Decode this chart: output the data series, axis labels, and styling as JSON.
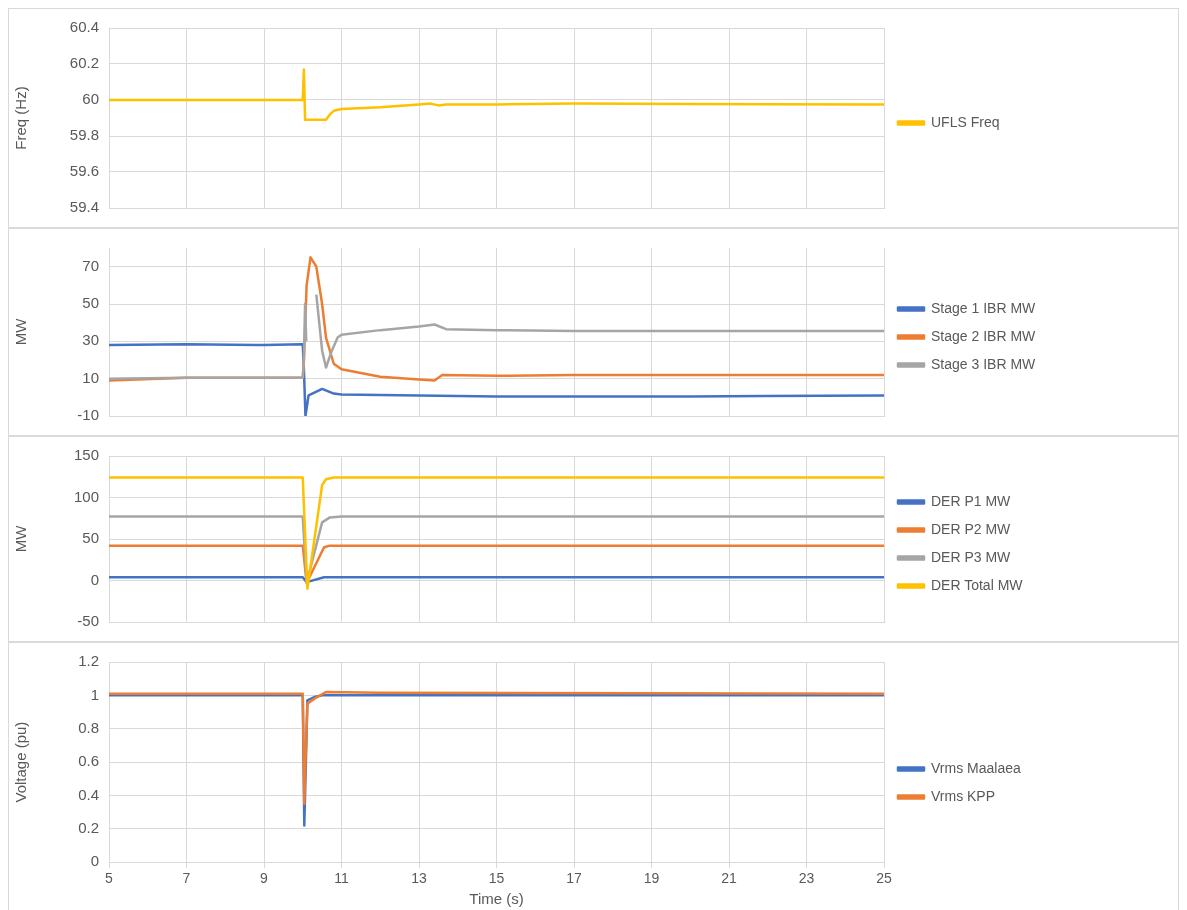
{
  "chart_data": [
    {
      "type": "line",
      "ylabel": "Freq (Hz)",
      "xlim": [
        5,
        25
      ],
      "xticks": [
        5,
        7,
        9,
        11,
        13,
        15,
        17,
        19,
        21,
        23,
        25
      ],
      "ylim": [
        59.4,
        60.4
      ],
      "yticks": [
        59.4,
        59.6,
        59.8,
        60,
        60.2,
        60.4
      ],
      "grid": true,
      "legend": "right",
      "tick_labels": "y",
      "series": [
        {
          "name": "UFLS Freq",
          "color": "#ffc000",
          "x": [
            5,
            10,
            10.03,
            10.06,
            10.6,
            10.7,
            10.8,
            11,
            12,
            13,
            13.3,
            13.5,
            13.7,
            15,
            17,
            20,
            25
          ],
          "values": [
            60,
            60,
            60.17,
            59.89,
            59.89,
            59.92,
            59.94,
            59.95,
            59.96,
            59.975,
            59.98,
            59.97,
            59.975,
            59.975,
            59.98,
            59.978,
            59.975
          ]
        }
      ]
    },
    {
      "type": "line",
      "ylabel": "MW",
      "xlim": [
        5,
        25
      ],
      "xticks": [
        5,
        7,
        9,
        11,
        13,
        15,
        17,
        19,
        21,
        23,
        25
      ],
      "ylim": [
        -10,
        80
      ],
      "yticks": [
        -10,
        10,
        30,
        50,
        70
      ],
      "grid": true,
      "legend": "right",
      "tick_labels": "y",
      "series": [
        {
          "name": "Stage 1 IBR MW",
          "color": "#4472c4",
          "x": [
            5,
            7,
            9,
            10,
            10.03,
            10.07,
            10.15,
            10.3,
            10.5,
            10.8,
            11,
            13,
            15,
            20,
            25
          ],
          "values": [
            28,
            28.5,
            28,
            28.5,
            15,
            -10,
            1,
            2.5,
            4.5,
            2,
            1.5,
            1,
            0.5,
            0.5,
            1
          ]
        },
        {
          "name": "Stage 2 IBR MW",
          "color": "#ed7d31",
          "x": [
            5,
            7,
            10,
            10.03,
            10.1,
            10.2,
            10.35,
            10.5,
            10.6,
            10.8,
            11,
            12,
            13,
            13.4,
            13.6,
            15,
            17,
            20,
            25
          ],
          "values": [
            9,
            10.5,
            10.5,
            20,
            60,
            75,
            70,
            50,
            32,
            18,
            15,
            11,
            9.5,
            9,
            12,
            11.5,
            12,
            12,
            12
          ]
        },
        {
          "name": "Stage 3 IBR MW",
          "color": "#a5a5a5",
          "x": [
            5,
            7,
            10,
            10.03,
            10.06,
            10.09,
            10.12,
            10.2,
            10.35,
            10.5,
            10.6,
            10.75,
            10.9,
            11,
            12,
            13,
            13.4,
            13.7,
            15,
            17,
            20,
            25
          ],
          "values": [
            10,
            10.5,
            10.5,
            20,
            50,
            30,
            null,
            null,
            55,
            25,
            16,
            25,
            32,
            33.5,
            36,
            38,
            39,
            36.5,
            36,
            35.5,
            35.5,
            35.5
          ]
        }
      ]
    },
    {
      "type": "line",
      "ylabel": "MW",
      "xlim": [
        5,
        25
      ],
      "xticks": [
        5,
        7,
        9,
        11,
        13,
        15,
        17,
        19,
        21,
        23,
        25
      ],
      "ylim": [
        -50,
        150
      ],
      "yticks": [
        -50,
        0,
        50,
        100,
        150
      ],
      "grid": true,
      "legend": "right",
      "tick_labels": "y",
      "series": [
        {
          "name": "DER P1 MW",
          "color": "#4472c4",
          "x": [
            5,
            10,
            10.1,
            10.55,
            25
          ],
          "values": [
            4,
            4,
            -2,
            4,
            4
          ]
        },
        {
          "name": "DER P2 MW",
          "color": "#ed7d31",
          "x": [
            5,
            10,
            10.1,
            10.55,
            10.7,
            25
          ],
          "values": [
            42,
            42,
            -3,
            40,
            42,
            42
          ]
        },
        {
          "name": "DER P3 MW",
          "color": "#a5a5a5",
          "x": [
            5,
            10,
            10.1,
            10.5,
            10.7,
            11,
            25
          ],
          "values": [
            77,
            77,
            -3,
            70,
            76,
            77,
            77
          ]
        },
        {
          "name": "DER Total MW",
          "color": "#ffc000",
          "x": [
            5,
            10,
            10.12,
            10.5,
            10.6,
            10.8,
            25
          ],
          "values": [
            124,
            124,
            -10,
            115,
            122,
            124,
            124
          ]
        }
      ]
    },
    {
      "type": "line",
      "xlabel": "Time (s)",
      "ylabel": "Voltage (pu)",
      "xlim": [
        5,
        25
      ],
      "xticks": [
        5,
        7,
        9,
        11,
        13,
        15,
        17,
        19,
        21,
        23,
        25
      ],
      "ylim": [
        0,
        1.2
      ],
      "yticks": [
        0,
        0.2,
        0.4,
        0.6,
        0.8,
        1,
        1.2
      ],
      "grid": true,
      "legend": "right",
      "series": [
        {
          "name": "Vrms Maalaea",
          "color": "#4472c4",
          "x": [
            5,
            10,
            10.04,
            10.07,
            10.12,
            10.3,
            10.5,
            25
          ],
          "values": [
            1,
            1,
            0.22,
            0.5,
            0.97,
            0.99,
            1,
            1
          ]
        },
        {
          "name": "Vrms KPP",
          "color": "#ed7d31",
          "x": [
            5,
            10,
            10.04,
            10.07,
            10.12,
            10.3,
            10.6,
            12,
            25
          ],
          "values": [
            1.01,
            1.01,
            0.35,
            0.6,
            0.95,
            0.98,
            1.02,
            1.015,
            1.01
          ]
        }
      ]
    }
  ]
}
